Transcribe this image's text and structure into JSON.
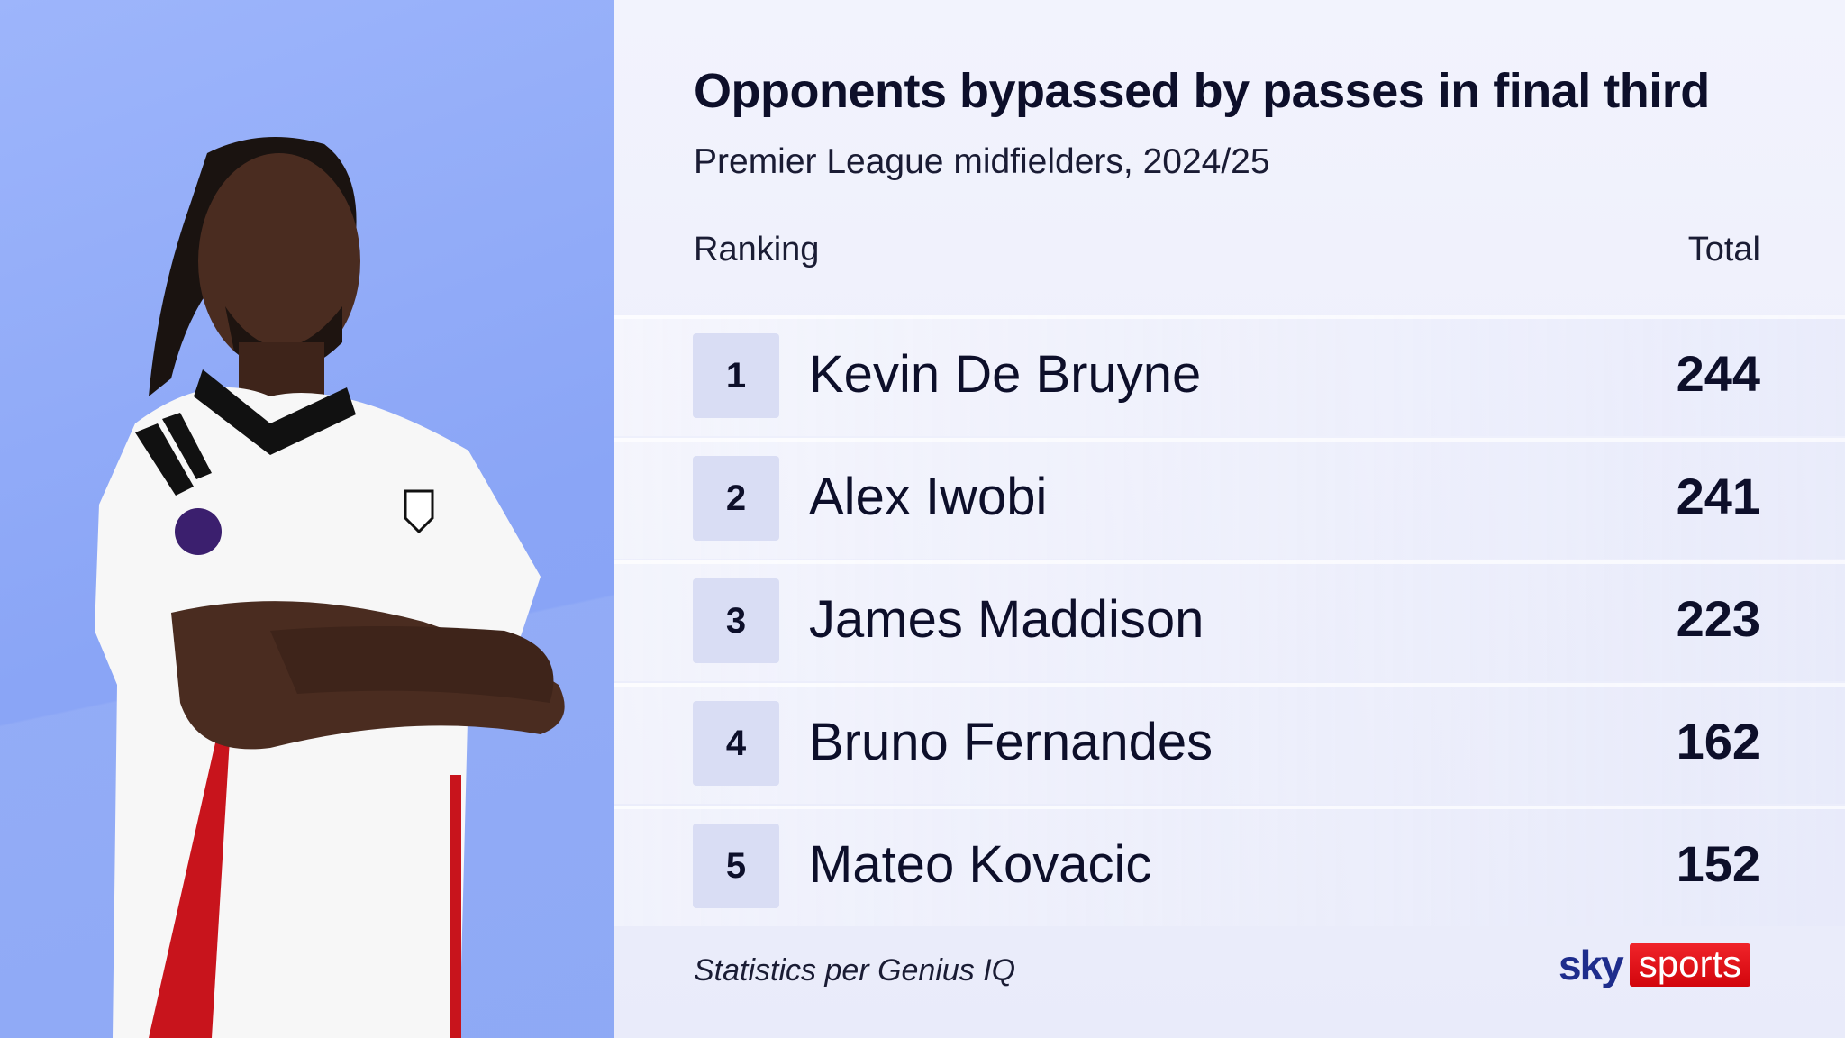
{
  "title": "Opponents bypassed by passes in final third",
  "subtitle": "Premier League midfielders, 2024/25",
  "headers": {
    "ranking": "Ranking",
    "total": "Total"
  },
  "rows": [
    {
      "rank": "1",
      "name": "Kevin De Bruyne",
      "total": "244"
    },
    {
      "rank": "2",
      "name": "Alex Iwobi",
      "total": "241"
    },
    {
      "rank": "3",
      "name": "James Maddison",
      "total": "223"
    },
    {
      "rank": "4",
      "name": "Bruno Fernandes",
      "total": "162"
    },
    {
      "rank": "5",
      "name": "Mateo Kovacic",
      "total": "152"
    }
  ],
  "footer": "Statistics per Genius IQ",
  "logo": {
    "sky": "sky",
    "sports": "sports"
  },
  "colors": {
    "panel": "#8aa5f6",
    "logo_red": "#e0141b",
    "logo_blue": "#1e2d8c",
    "text": "#0d0f2a"
  }
}
